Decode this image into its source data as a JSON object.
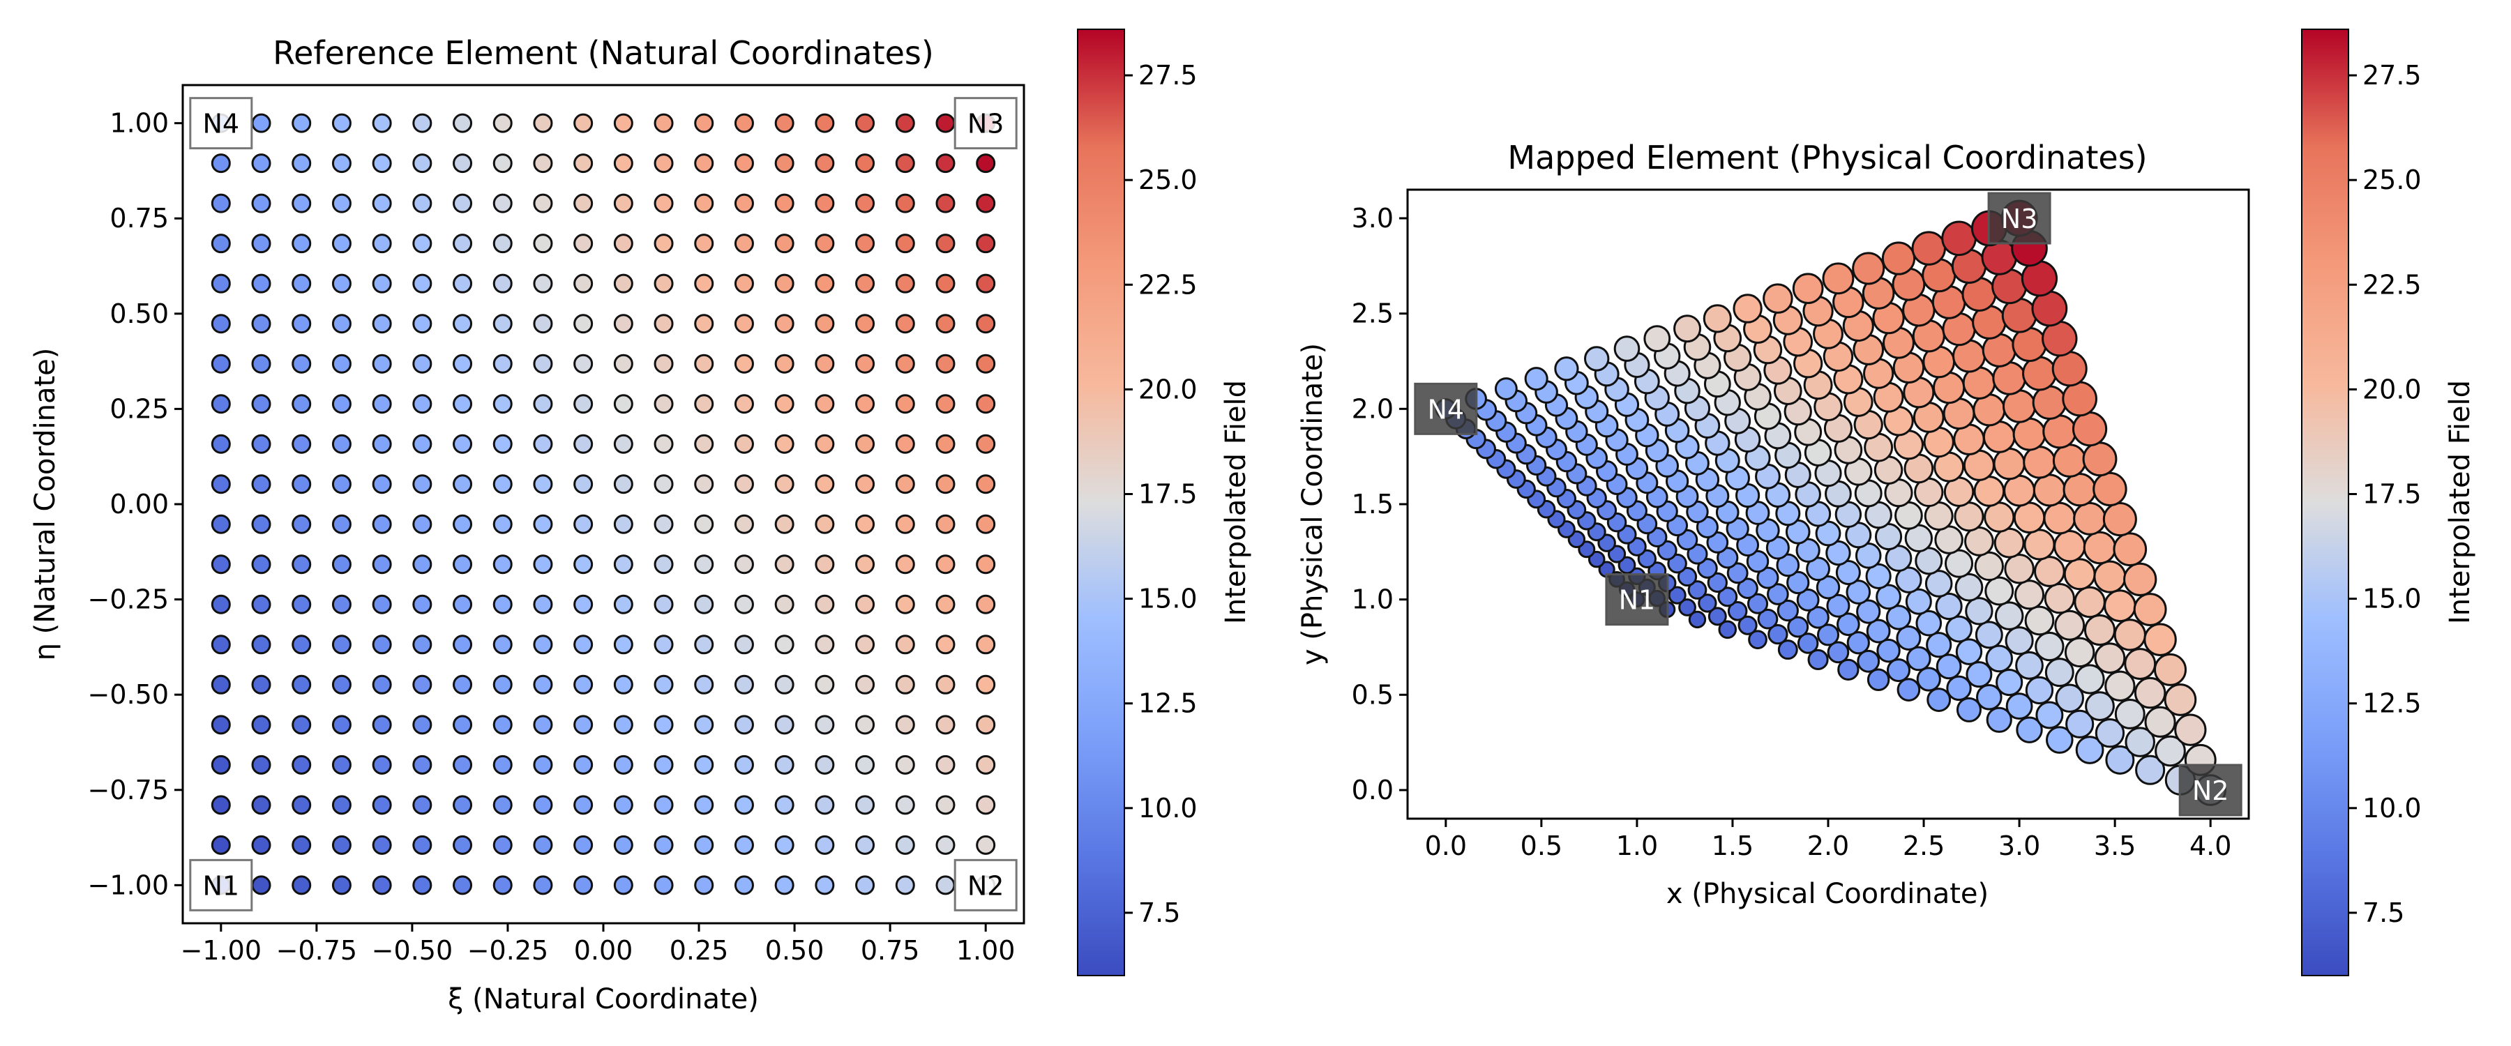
{
  "chart_data": [
    {
      "type": "scatter",
      "title": "Reference Element (Natural Coordinates)",
      "xlabel": "ξ (Natural Coordinate)",
      "ylabel": "η (Natural Coordinate)",
      "xlim": [
        -1.1,
        1.1
      ],
      "ylim": [
        -1.1,
        1.1
      ],
      "xticks": [
        -1.0,
        -0.75,
        -0.5,
        -0.25,
        0.0,
        0.25,
        0.5,
        0.75,
        1.0
      ],
      "xtick_labels": [
        "−1.00",
        "−0.75",
        "−0.50",
        "−0.25",
        "0.00",
        "0.25",
        "0.50",
        "0.75",
        "1.00"
      ],
      "yticks": [
        -1.0,
        -0.75,
        -0.5,
        -0.25,
        0.0,
        0.25,
        0.5,
        0.75,
        1.0
      ],
      "ytick_labels": [
        "−1.00",
        "−0.75",
        "−0.50",
        "−0.25",
        "0.00",
        "0.25",
        "0.50",
        "0.75",
        "1.00"
      ],
      "grid": false,
      "grid_points": {
        "n": 20,
        "min": -1.0,
        "max": 1.0
      },
      "nodes": [
        {
          "label": "N1",
          "xi": -1,
          "eta": -1,
          "value": 6.0
        },
        {
          "label": "N2",
          "xi": 1,
          "eta": -1,
          "value": 17.0
        },
        {
          "label": "N3",
          "xi": 1,
          "eta": 1,
          "value": 29.0
        },
        {
          "label": "N4",
          "xi": -1,
          "eta": 1,
          "value": 11.0
        }
      ],
      "field": "bilinear interpolation of node values"
    },
    {
      "type": "scatter",
      "title": "Mapped Element (Physical Coordinates)",
      "xlabel": "x (Physical Coordinate)",
      "ylabel": "y (Physical Coordinate)",
      "xlim": [
        -0.2,
        4.2
      ],
      "ylim": [
        -0.15,
        3.15
      ],
      "xticks": [
        0.0,
        0.5,
        1.0,
        1.5,
        2.0,
        2.5,
        3.0,
        3.5,
        4.0
      ],
      "xtick_labels": [
        "0.0",
        "0.5",
        "1.0",
        "1.5",
        "2.0",
        "2.5",
        "3.0",
        "3.5",
        "4.0"
      ],
      "yticks": [
        0.0,
        0.5,
        1.0,
        1.5,
        2.0,
        2.5,
        3.0
      ],
      "ytick_labels": [
        "0.0",
        "0.5",
        "1.0",
        "1.5",
        "2.0",
        "2.5",
        "3.0"
      ],
      "grid": false,
      "nodes": [
        {
          "label": "N1",
          "x": 1.0,
          "y": 1.0
        },
        {
          "label": "N2",
          "x": 4.0,
          "y": 0.0
        },
        {
          "label": "N3",
          "x": 3.0,
          "y": 3.0
        },
        {
          "label": "N4",
          "x": 0.0,
          "y": 2.0
        }
      ],
      "marker_size": "scaled by local Jacobian"
    }
  ],
  "colorbars": [
    {
      "label": "Interpolated Field",
      "range": [
        6.0,
        28.6
      ],
      "ticks": [
        7.5,
        10.0,
        12.5,
        15.0,
        17.5,
        20.0,
        22.5,
        25.0,
        27.5
      ],
      "tick_labels": [
        "7.5",
        "10.0",
        "12.5",
        "15.0",
        "17.5",
        "20.0",
        "22.5",
        "25.0",
        "27.5"
      ]
    },
    {
      "label": "Interpolated Field",
      "range": [
        6.0,
        28.6
      ],
      "ticks": [
        7.5,
        10.0,
        12.5,
        15.0,
        17.5,
        20.0,
        22.5,
        25.0,
        27.5
      ],
      "tick_labels": [
        "7.5",
        "10.0",
        "12.5",
        "15.0",
        "17.5",
        "20.0",
        "22.5",
        "25.0",
        "27.5"
      ]
    }
  ],
  "colormap": "coolwarm",
  "colors": {
    "cold": "#3b4cc0",
    "neutral": "#dddddd",
    "hot": "#b40426",
    "axis": "#000000",
    "node_label_bg_dark": "#444444"
  }
}
